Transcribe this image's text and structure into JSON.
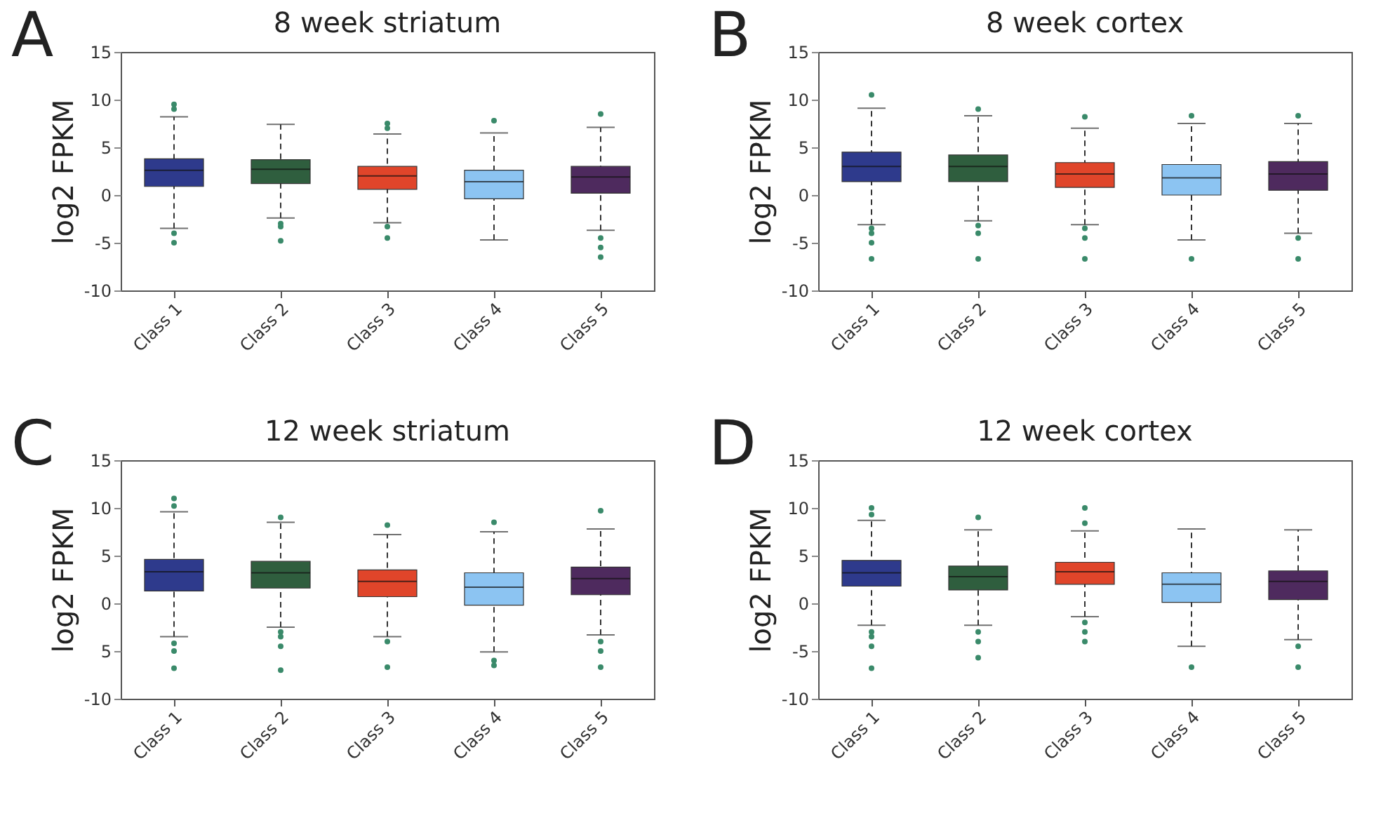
{
  "chart_data": [
    {
      "type": "box",
      "annotations": [
        "A"
      ],
      "title": "8 week striatum",
      "ylabel": "log2 FPKM",
      "categories": [
        "Class 1",
        "Class 2",
        "Class 3",
        "Class 4",
        "Class 5"
      ],
      "colors": [
        "#2e3a8c",
        "#2f5e3e",
        "#e0452a",
        "#8cc4f2",
        "#4e2a5e"
      ],
      "line_style": "dashed",
      "ylim": [
        -10,
        15
      ],
      "yticks": [
        15,
        10,
        5,
        0,
        -5,
        -10
      ],
      "boxes": [
        {
          "low": -3.5,
          "q1": 0.9,
          "median": 2.6,
          "q3": 3.8,
          "high": 8.2,
          "outliers": [
            9,
            9.5,
            -4,
            -5
          ]
        },
        {
          "low": -2.4,
          "q1": 1.2,
          "median": 2.7,
          "q3": 3.7,
          "high": 7.4,
          "outliers": [
            -3,
            -3.3,
            -4.8
          ]
        },
        {
          "low": -2.9,
          "q1": 0.6,
          "median": 2,
          "q3": 3,
          "high": 6.4,
          "outliers": [
            7,
            7.5,
            -3.3,
            -4.5
          ]
        },
        {
          "low": -4.7,
          "q1": -0.4,
          "median": 1.4,
          "q3": 2.6,
          "high": 6.5,
          "outliers": [
            7.8
          ]
        },
        {
          "low": -3.7,
          "q1": 0.2,
          "median": 1.9,
          "q3": 3,
          "high": 7.1,
          "outliers": [
            8.5,
            -4.5,
            -5.5,
            -6.5
          ]
        }
      ]
    },
    {
      "type": "box",
      "annotations": [
        "B"
      ],
      "title": "8 week cortex",
      "ylabel": "log2 FPKM",
      "categories": [
        "Class 1",
        "Class 2",
        "Class 3",
        "Class 4",
        "Class 5"
      ],
      "colors": [
        "#2e3a8c",
        "#2f5e3e",
        "#e0452a",
        "#8cc4f2",
        "#4e2a5e"
      ],
      "line_style": "dashed",
      "ylim": [
        -10,
        15
      ],
      "yticks": [
        15,
        10,
        5,
        0,
        -5,
        -10
      ],
      "boxes": [
        {
          "low": -3.1,
          "q1": 1.4,
          "median": 3,
          "q3": 4.5,
          "high": 9.1,
          "outliers": [
            10.5,
            -3.5,
            -4,
            -5,
            -6.7
          ]
        },
        {
          "low": -2.7,
          "q1": 1.4,
          "median": 3,
          "q3": 4.2,
          "high": 8.3,
          "outliers": [
            9,
            -3.2,
            -4,
            -6.7
          ]
        },
        {
          "low": -3.1,
          "q1": 0.8,
          "median": 2.2,
          "q3": 3.4,
          "high": 7,
          "outliers": [
            8.2,
            -3.5,
            -4.5,
            -6.7
          ]
        },
        {
          "low": -4.7,
          "q1": 0,
          "median": 1.8,
          "q3": 3.2,
          "high": 7.5,
          "outliers": [
            8.3,
            -6.7
          ]
        },
        {
          "low": -4,
          "q1": 0.5,
          "median": 2.2,
          "q3": 3.5,
          "high": 7.5,
          "outliers": [
            8.3,
            -4.5,
            -6.7
          ]
        }
      ]
    },
    {
      "type": "box",
      "annotations": [
        "C"
      ],
      "title": "12 week striatum",
      "ylabel": "log2 FPKM",
      "categories": [
        "Class 1",
        "Class 2",
        "Class 3",
        "Class 4",
        "Class 5"
      ],
      "colors": [
        "#2e3a8c",
        "#2f5e3e",
        "#e0452a",
        "#8cc4f2",
        "#4e2a5e"
      ],
      "line_style": "dashed",
      "ylim": [
        -10,
        15
      ],
      "yticks": [
        15,
        10,
        5,
        0,
        {
          "value": -5,
          "label": "5"
        },
        -10
      ],
      "boxes": [
        {
          "low": -3.5,
          "q1": 1.3,
          "median": 3.3,
          "q3": 4.6,
          "high": 9.6,
          "outliers": [
            10.2,
            11,
            -4.2,
            -5,
            -6.8
          ]
        },
        {
          "low": -2.5,
          "q1": 1.6,
          "median": 3.2,
          "q3": 4.4,
          "high": 8.5,
          "outliers": [
            9,
            -3,
            -3.5,
            -4.5,
            -7
          ]
        },
        {
          "low": -3.5,
          "q1": 0.7,
          "median": 2.3,
          "q3": 3.5,
          "high": 7.2,
          "outliers": [
            8.2,
            -4,
            -6.7
          ]
        },
        {
          "low": -5.1,
          "q1": -0.2,
          "median": 1.7,
          "q3": 3.2,
          "high": 7.5,
          "outliers": [
            8.5,
            -6,
            -6.5
          ]
        },
        {
          "low": -3.3,
          "q1": 0.9,
          "median": 2.6,
          "q3": 3.8,
          "high": 7.8,
          "outliers": [
            9.7,
            -4,
            -5,
            -6.7
          ]
        }
      ]
    },
    {
      "type": "box",
      "annotations": [
        "D"
      ],
      "title": "12 week cortex",
      "ylabel": "log2 FPKM",
      "categories": [
        "Class 1",
        "Class 2",
        "Class 3",
        "Class 4",
        "Class 5"
      ],
      "colors": [
        "#2e3a8c",
        "#2f5e3e",
        "#e0452a",
        "#8cc4f2",
        "#4e2a5e"
      ],
      "line_style": "dashed",
      "ylim": [
        -10,
        15
      ],
      "yticks": [
        15,
        10,
        5,
        0,
        -5,
        -10
      ],
      "boxes": [
        {
          "low": -2.3,
          "q1": 1.8,
          "median": 3.2,
          "q3": 4.5,
          "high": 8.7,
          "outliers": [
            9.3,
            10,
            -3,
            -3.5,
            -4.5,
            -6.8
          ]
        },
        {
          "low": -2.3,
          "q1": 1.4,
          "median": 2.8,
          "q3": 3.9,
          "high": 7.7,
          "outliers": [
            9,
            -3,
            -4,
            -5.7
          ]
        },
        {
          "low": -1.4,
          "q1": 2,
          "median": 3.3,
          "q3": 4.3,
          "high": 7.6,
          "outliers": [
            8.4,
            10,
            -2,
            -3,
            -4
          ]
        },
        {
          "low": -4.5,
          "q1": 0.1,
          "median": 2,
          "q3": 3.2,
          "high": 7.8,
          "outliers": [
            -6.7
          ]
        },
        {
          "low": -3.8,
          "q1": 0.4,
          "median": 2.3,
          "q3": 3.4,
          "high": 7.7,
          "outliers": [
            -4.5,
            -6.7
          ]
        }
      ]
    }
  ]
}
